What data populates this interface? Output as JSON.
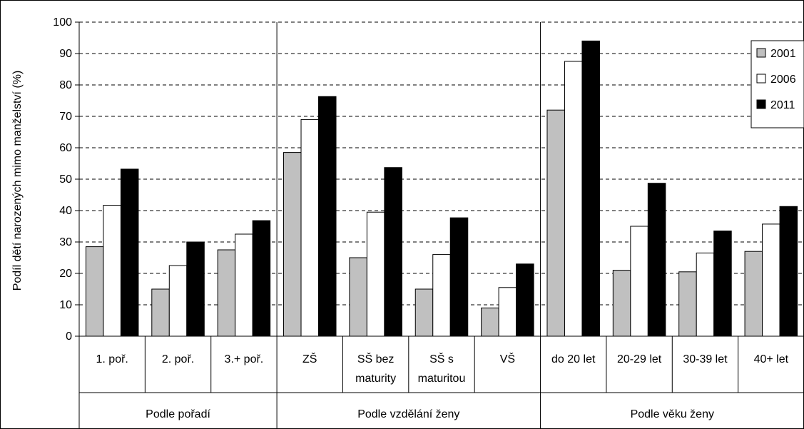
{
  "chart_data": {
    "type": "bar",
    "ylabel": "Podíl dětí narozených mimo manželství (%)",
    "ylim": [
      0,
      100
    ],
    "yticks": [
      0,
      10,
      20,
      30,
      40,
      50,
      60,
      70,
      80,
      90,
      100
    ],
    "grid": "horizontal dashed",
    "legend_position": "top-right",
    "groups": [
      {
        "label": "Podle pořadí",
        "categories": 3
      },
      {
        "label": "Podle vzdělání ženy",
        "categories": 4
      },
      {
        "label": "Podle věku ženy",
        "categories": 4
      }
    ],
    "categories": [
      [
        "1. poř."
      ],
      [
        "2. poř."
      ],
      [
        "3.+ poř."
      ],
      [
        "ZŠ"
      ],
      [
        "SŠ bez",
        "maturity"
      ],
      [
        "SŠ s",
        "maturitou"
      ],
      [
        "VŠ"
      ],
      [
        "do 20 let"
      ],
      [
        "20-29 let"
      ],
      [
        "30-39 let"
      ],
      [
        "40+ let"
      ]
    ],
    "series": [
      {
        "name": "2001",
        "color": "#c0c0c0",
        "values": [
          28.5,
          15,
          27.5,
          58.5,
          25,
          15,
          9,
          72,
          21,
          20.5,
          27
        ]
      },
      {
        "name": "2006",
        "color": "#ffffff",
        "values": [
          41.7,
          22.5,
          32.5,
          69,
          39.5,
          26,
          15.5,
          87.5,
          35,
          26.5,
          35.7
        ]
      },
      {
        "name": "2011",
        "color": "#000000",
        "values": [
          53.2,
          30,
          36.8,
          76.3,
          53.7,
          37.7,
          23,
          94,
          48.7,
          33.5,
          41.3
        ]
      }
    ]
  }
}
